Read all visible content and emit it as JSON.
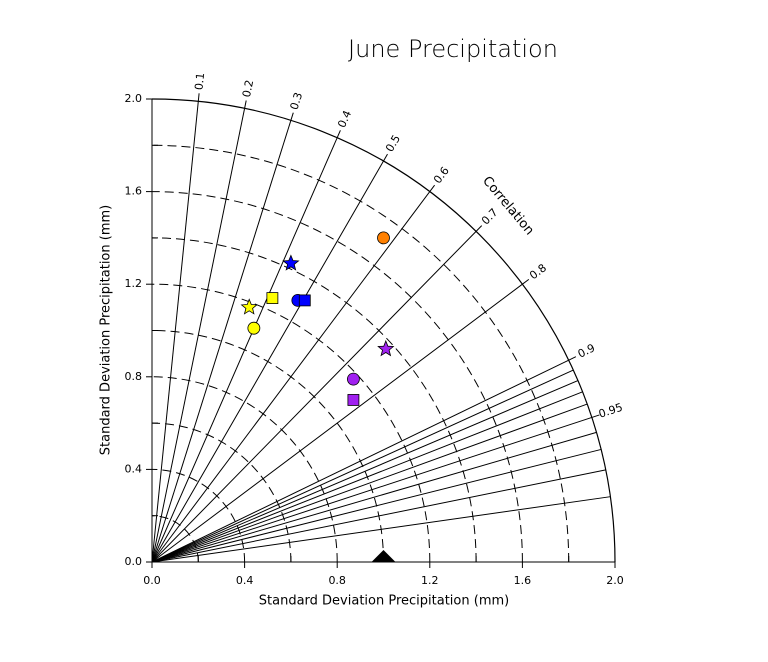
{
  "chart_data": {
    "type": "taylor",
    "title": "June Precipitation",
    "x_label": "Standard Deviation Precipitation (mm)",
    "y_label": "Standard Deviation Precipitation (mm)",
    "correlation_label": "Correlation",
    "xlim": [
      0,
      2.0
    ],
    "ylim": [
      0,
      2.0
    ],
    "xticks": [
      {
        "value": 0,
        "label": "0.0"
      },
      0.4,
      0.8,
      1.2,
      1.6,
      {
        "value": 2,
        "label": "2.0"
      }
    ],
    "yticks": [
      {
        "value": 0,
        "label": "0.0"
      },
      0.4,
      0.8,
      1.2,
      1.6,
      {
        "value": 2,
        "label": "2.0"
      }
    ],
    "minor_ticks": [
      0.2,
      0.6,
      1.0,
      1.4,
      1.8
    ],
    "std_arcs": [
      0.2,
      0.4,
      0.6,
      0.8,
      1.0,
      1.2,
      1.4,
      1.6,
      1.8
    ],
    "correlation_lines": [
      0.1,
      0.2,
      0.3,
      0.4,
      0.5,
      0.6,
      0.7,
      0.8,
      0.9,
      0.91,
      0.92,
      0.93,
      0.94,
      0.95,
      0.96,
      0.97,
      0.98,
      0.99
    ],
    "correlation_ticks": [
      0.1,
      0.2,
      0.3,
      0.4,
      0.5,
      0.6,
      0.7,
      0.8,
      0.9,
      0.95
    ],
    "reference": {
      "x": 1.0,
      "y": 0,
      "marker": "triangle",
      "color": "#000000"
    },
    "series": [
      {
        "color": "#ff8000",
        "marker": "circle",
        "x": [
          1.0
        ],
        "y": [
          1.4
        ]
      },
      {
        "color": "#0000ff",
        "marker": "star",
        "x": [
          0.6
        ],
        "y": [
          1.29
        ]
      },
      {
        "color": "#0000ff",
        "marker": "circle",
        "x": [
          0.63
        ],
        "y": [
          1.13
        ]
      },
      {
        "color": "#0000ff",
        "marker": "square",
        "x": [
          0.66
        ],
        "y": [
          1.13
        ]
      },
      {
        "color": "#ffff00",
        "marker": "square",
        "x": [
          0.52
        ],
        "y": [
          1.14
        ]
      },
      {
        "color": "#ffff00",
        "marker": "star",
        "x": [
          0.42
        ],
        "y": [
          1.1
        ]
      },
      {
        "color": "#ffff00",
        "marker": "circle",
        "x": [
          0.44
        ],
        "y": [
          1.01
        ]
      },
      {
        "color": "#a020f0",
        "marker": "star",
        "x": [
          1.01
        ],
        "y": [
          0.92
        ]
      },
      {
        "color": "#a020f0",
        "marker": "circle",
        "x": [
          0.87
        ],
        "y": [
          0.79
        ]
      },
      {
        "color": "#a020f0",
        "marker": "square",
        "x": [
          0.87
        ],
        "y": [
          0.7
        ]
      }
    ]
  }
}
